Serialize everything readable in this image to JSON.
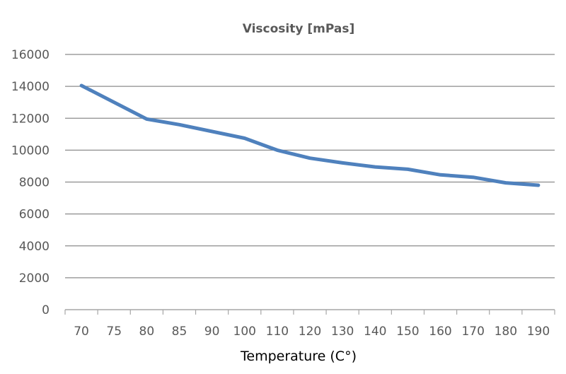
{
  "chart_data": {
    "type": "line",
    "title": "Viscosity  [mPas]",
    "xlabel": "Temperature (C°)",
    "ylabel": "",
    "categories": [
      "70",
      "75",
      "80",
      "85",
      "90",
      "100",
      "110",
      "120",
      "130",
      "140",
      "150",
      "160",
      "170",
      "180",
      "190"
    ],
    "x": [
      70,
      80,
      100,
      110,
      120,
      130,
      140,
      150,
      160,
      170,
      180,
      190
    ],
    "series": [
      {
        "values": [
          [
            70,
            14050
          ],
          [
            80,
            11950
          ],
          [
            85,
            11600
          ],
          [
            100,
            10750
          ],
          [
            110,
            10000
          ],
          [
            120,
            9500
          ],
          [
            130,
            9200
          ],
          [
            140,
            8950
          ],
          [
            150,
            8800
          ],
          [
            160,
            8450
          ],
          [
            170,
            8300
          ],
          [
            180,
            7950
          ],
          [
            190,
            7800
          ]
        ]
      }
    ],
    "ylim": [
      0,
      16000
    ],
    "yticks": [
      0,
      2000,
      4000,
      6000,
      8000,
      10000,
      12000,
      14000,
      16000
    ],
    "grid": true,
    "legend": "none",
    "line_color": "#4F81BD"
  }
}
